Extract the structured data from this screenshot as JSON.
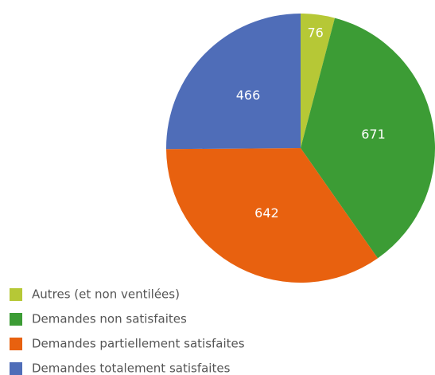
{
  "chart_data": {
    "type": "pie",
    "categories": [
      "Autres (et non ventilées)",
      "Demandes non satisfaites",
      "Demandes partiellement satisfaites",
      "Demandes totalement satisfaites"
    ],
    "values": [
      76,
      671,
      642,
      466
    ],
    "colors": [
      "#b6c836",
      "#3c9c35",
      "#e8610f",
      "#4f6db8"
    ]
  }
}
